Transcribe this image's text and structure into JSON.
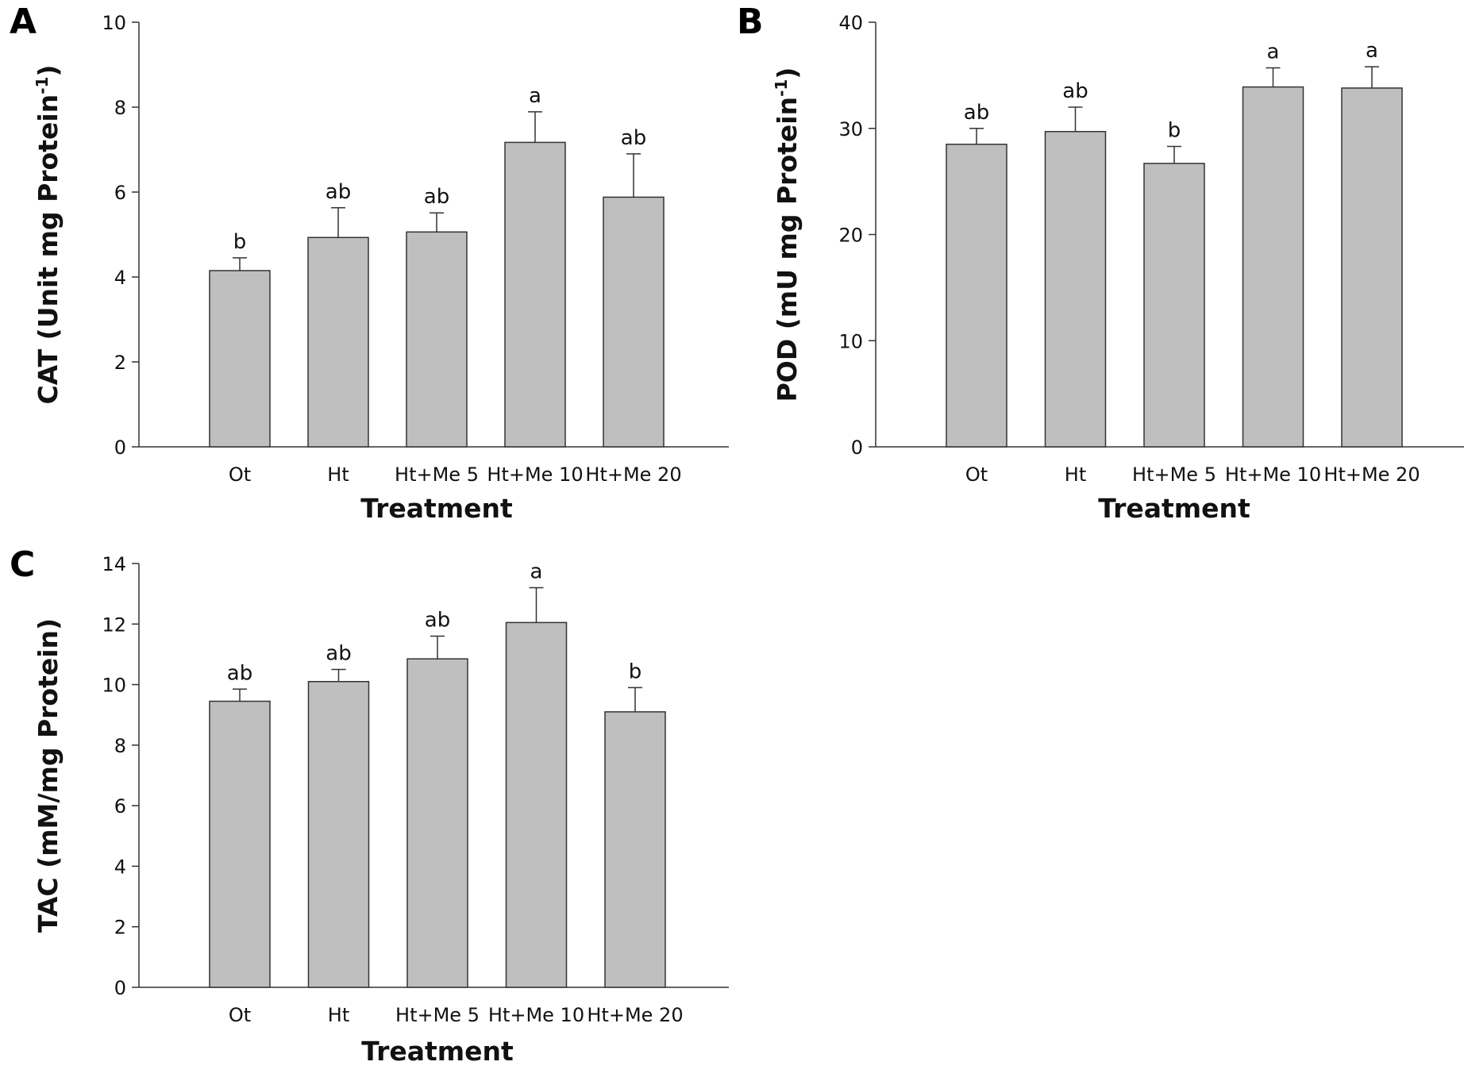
{
  "panels": [
    {
      "label": "A"
    },
    {
      "label": "B"
    },
    {
      "label": "C"
    }
  ],
  "chart_data": [
    {
      "type": "bar",
      "title": "",
      "categories": [
        "Ot",
        "Ht",
        "Ht+Me 5",
        "Ht+Me 10",
        "Ht+Me 20"
      ],
      "values": [
        4.15,
        4.93,
        5.06,
        7.17,
        5.88
      ],
      "errors": [
        0.3,
        0.7,
        0.45,
        0.72,
        1.02
      ],
      "significance": [
        "b",
        "ab",
        "ab",
        "a",
        "ab"
      ],
      "xlabel": "Treatment",
      "ylabel_main": "CAT (Unit mg Protein",
      "ylabel_sup": "-1",
      "ylabel_end": ")",
      "ylim": [
        0,
        10
      ],
      "yticks": [
        "0",
        "2",
        "4",
        "6",
        "8",
        "10"
      ],
      "bar_color": "#bfbfbf"
    },
    {
      "type": "bar",
      "title": "",
      "categories": [
        "Ot",
        "Ht",
        "Ht+Me 5",
        "Ht+Me 10",
        "Ht+Me 20"
      ],
      "values": [
        28.5,
        29.7,
        26.7,
        33.9,
        33.8
      ],
      "errors": [
        1.5,
        2.3,
        1.6,
        1.8,
        2.0
      ],
      "significance": [
        "ab",
        "ab",
        "b",
        "a",
        "a"
      ],
      "xlabel": "Treatment",
      "ylabel_main": "POD (mU mg Protein",
      "ylabel_sup": "-1",
      "ylabel_end": ")",
      "ylim": [
        0,
        40
      ],
      "yticks": [
        "0",
        "10",
        "20",
        "30",
        "40"
      ],
      "bar_color": "#bfbfbf"
    },
    {
      "type": "bar",
      "title": "",
      "categories": [
        "Ot",
        "Ht",
        "Ht+Me 5",
        "Ht+Me 10",
        "Ht+Me 20"
      ],
      "values": [
        9.45,
        10.1,
        10.85,
        12.05,
        9.1
      ],
      "errors": [
        0.4,
        0.4,
        0.75,
        1.15,
        0.8
      ],
      "significance": [
        "ab",
        "ab",
        "ab",
        "a",
        "b"
      ],
      "xlabel": "Treatment",
      "ylabel_main": "TAC (mM/mg Protein)",
      "ylabel_sup": "",
      "ylabel_end": "",
      "ylim": [
        0,
        14
      ],
      "yticks": [
        "0",
        "2",
        "4",
        "6",
        "8",
        "10",
        "12",
        "14"
      ],
      "bar_color": "#bfbfbf"
    }
  ]
}
